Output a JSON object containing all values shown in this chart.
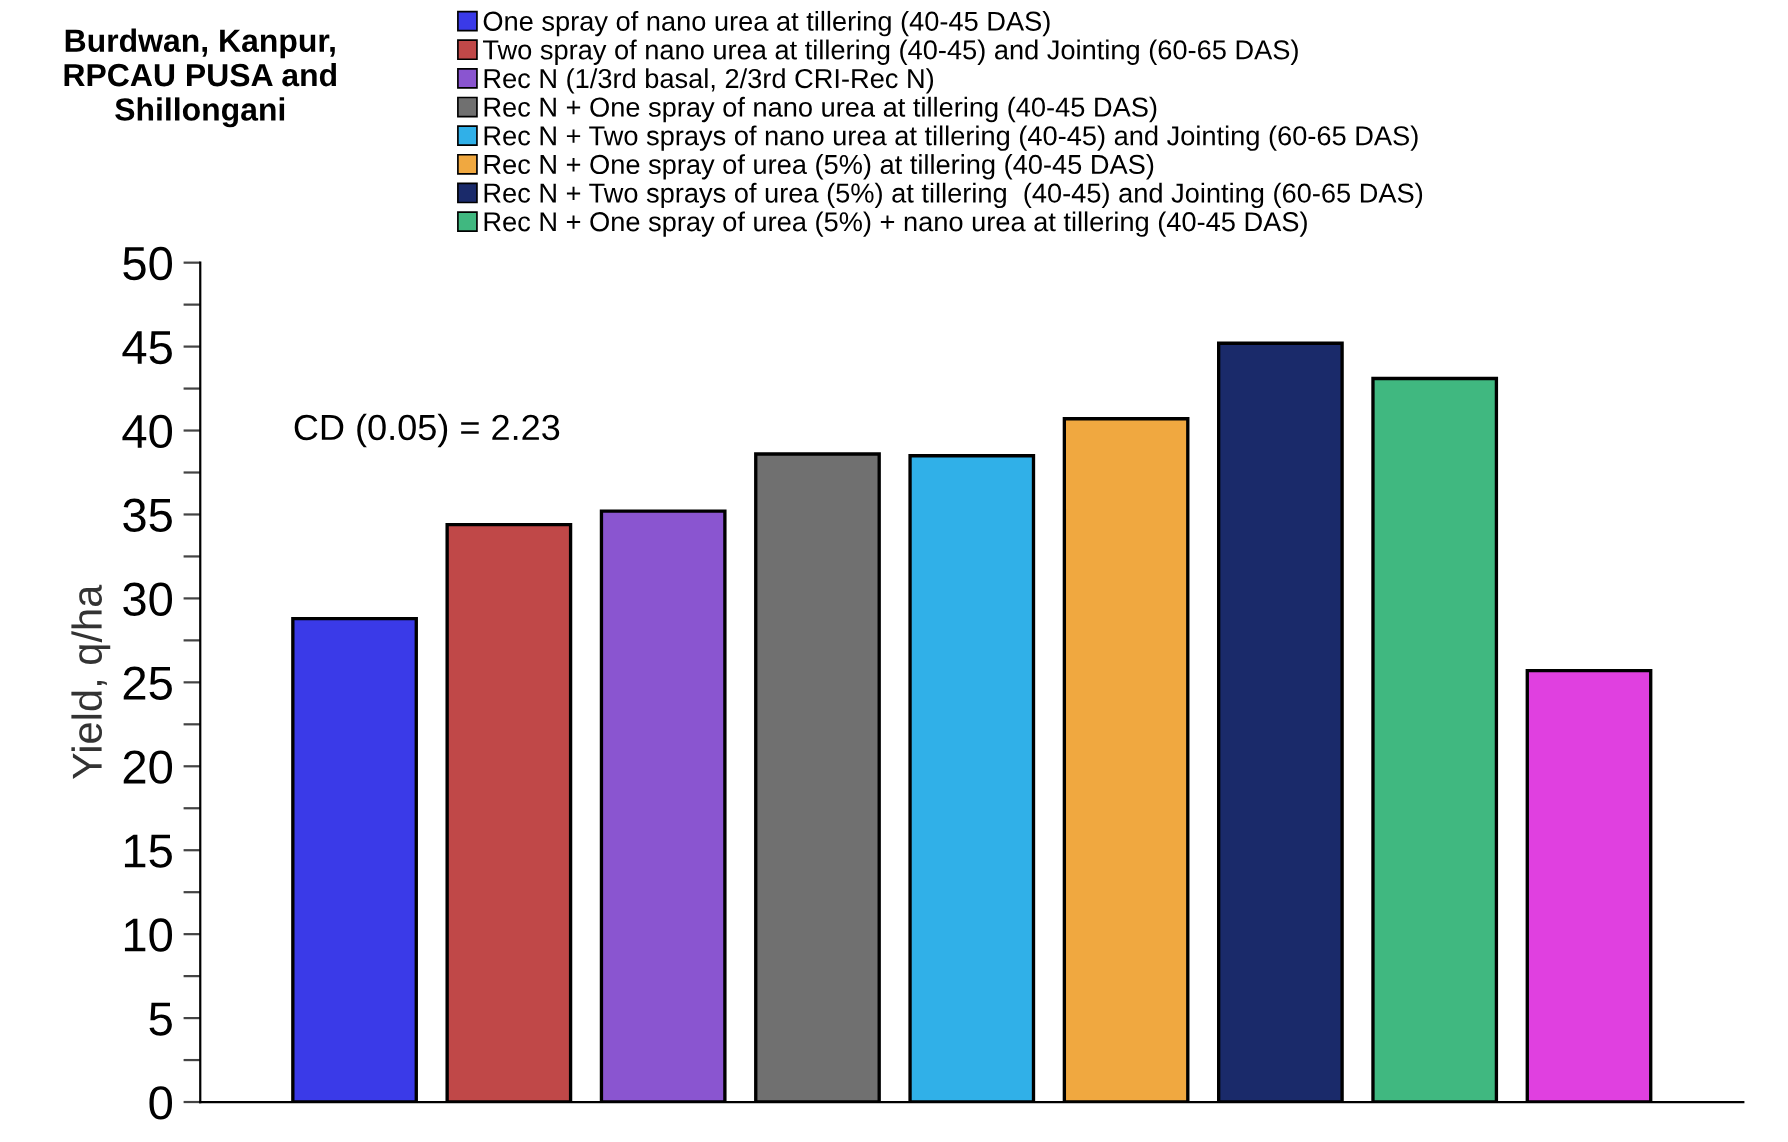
{
  "chart_data": {
    "type": "bar",
    "title": "Burdwan, Kanpur,\nRPCAU PUSA and\nShillongani",
    "ylabel": "Yield, q/ha",
    "categories": [
      null,
      null,
      null,
      null,
      null,
      null,
      null,
      null,
      null
    ],
    "series": [
      {
        "name": "One spray of nano urea at tillering (40-45 DAS)",
        "color": "#3a3ae8",
        "values": [
          28.8,
          null,
          null,
          null,
          null,
          null,
          null,
          null,
          null
        ]
      },
      {
        "name": "Two spray of nano urea at tillering (40-45) and Jointing (60-65 DAS)",
        "color": "#c04848",
        "values": [
          null,
          34.4,
          null,
          null,
          null,
          null,
          null,
          null,
          null
        ]
      },
      {
        "name": "Rec N (1/3rd basal, 2/3rd CRI-Rec N)",
        "color": "#8a55d0",
        "values": [
          null,
          null,
          35.2,
          null,
          null,
          null,
          null,
          null,
          null
        ]
      },
      {
        "name": "Rec N + One spray of nano urea at tillering (40-45 DAS)",
        "color": "#707070",
        "values": [
          null,
          null,
          null,
          38.6,
          null,
          null,
          null,
          null,
          null
        ]
      },
      {
        "name": "Rec N + Two sprays of nano urea at tillering (40-45) and Jointing (60-65 DAS)",
        "color": "#30b0e8",
        "values": [
          null,
          null,
          null,
          null,
          38.5,
          null,
          null,
          null,
          null
        ]
      },
      {
        "name": "Rec N + One spray of urea (5%) at tillering (40-45 DAS)",
        "color": "#f0a840",
        "values": [
          null,
          null,
          null,
          null,
          null,
          40.7,
          null,
          null,
          null
        ]
      },
      {
        "name": "Rec N + Two sprays of urea (5%) at tillering  (40-45) and Jointing (60-65 DAS)",
        "color": "#1a2a6a",
        "values": [
          null,
          null,
          null,
          null,
          null,
          null,
          45.2,
          null,
          null
        ]
      },
      {
        "name": "Rec N + One spray of urea (5%) + nano urea at tillering (40-45 DAS)",
        "color": "#40b880",
        "values": [
          null,
          null,
          null,
          null,
          null,
          null,
          null,
          43.1,
          null
        ]
      },
      {
        "color": "#e040e0",
        "values": [
          null,
          null,
          null,
          null,
          null,
          null,
          null,
          null,
          25.7
        ]
      }
    ],
    "ylim": [
      0,
      50
    ],
    "yticks": [
      0,
      {
        "value": 2.5,
        "label": null
      },
      5,
      {
        "value": 7.5,
        "label": null
      },
      10,
      {
        "value": 12.5,
        "label": null
      },
      15,
      {
        "value": 17.5,
        "label": null
      },
      20,
      {
        "value": 22.5,
        "label": null
      },
      25,
      {
        "value": 27.5,
        "label": null
      },
      30,
      {
        "value": 32.5,
        "label": null
      },
      35,
      {
        "value": 37.5,
        "label": null
      },
      40,
      {
        "value": 42.5,
        "label": null
      },
      45,
      {
        "value": 47.5,
        "label": null
      },
      50
    ],
    "annotations": [
      "CD (0.05) = 2.23"
    ],
    "legend": "top",
    "grid": false
  }
}
